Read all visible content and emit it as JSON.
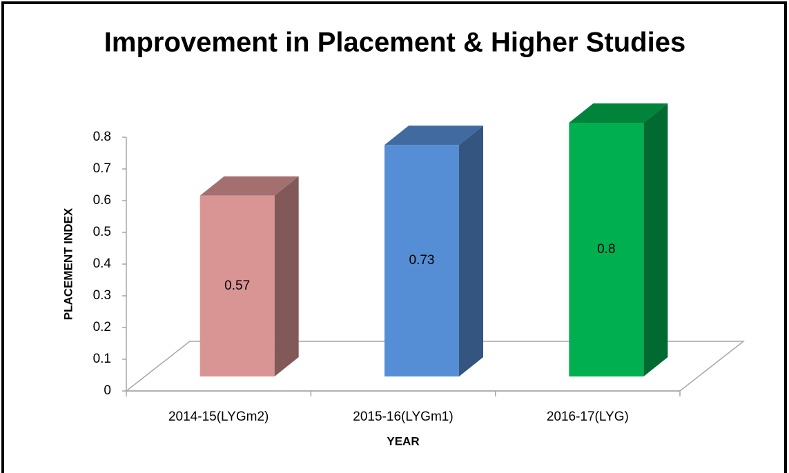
{
  "chart_data": {
    "type": "bar3d",
    "title": "Improvement in Placement & Higher Studies",
    "categories": [
      "2014-15(LYGm2)",
      "2015-16(LYGm1)",
      "2016-17(LYG)"
    ],
    "values": [
      0.57,
      0.73,
      0.8
    ],
    "colors": [
      "#d99594",
      "#558ed5",
      "#00b050"
    ],
    "ylim": [
      0,
      0.8
    ],
    "yticks": [
      0,
      0.1,
      0.2,
      0.3,
      0.4,
      0.5,
      0.6,
      0.7,
      0.8
    ],
    "xlabel": "YEAR",
    "ylabel": "PLACEMENT INDEX"
  }
}
